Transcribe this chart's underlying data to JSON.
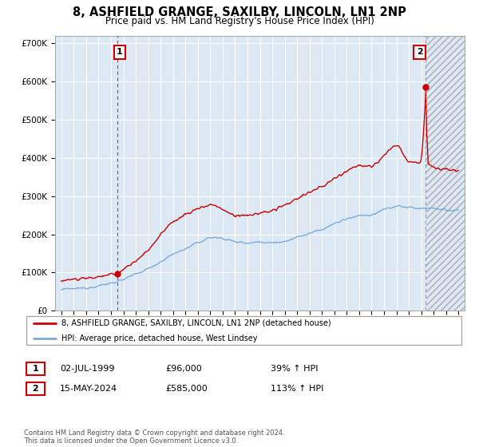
{
  "title": "8, ASHFIELD GRANGE, SAXILBY, LINCOLN, LN1 2NP",
  "subtitle": "Price paid vs. HM Land Registry's House Price Index (HPI)",
  "title_fontsize": 10.5,
  "subtitle_fontsize": 8.5,
  "xlim_start": 1994.5,
  "xlim_end": 2027.5,
  "ylim_min": 0,
  "ylim_max": 720000,
  "yticks": [
    0,
    100000,
    200000,
    300000,
    400000,
    500000,
    600000,
    700000
  ],
  "ytick_labels": [
    "£0",
    "£100K",
    "£200K",
    "£300K",
    "£400K",
    "£500K",
    "£600K",
    "£700K"
  ],
  "xticks": [
    1995,
    1996,
    1997,
    1998,
    1999,
    2000,
    2001,
    2002,
    2003,
    2004,
    2005,
    2006,
    2007,
    2008,
    2009,
    2010,
    2011,
    2012,
    2013,
    2014,
    2015,
    2016,
    2017,
    2018,
    2019,
    2020,
    2021,
    2022,
    2023,
    2024,
    2025,
    2026,
    2027
  ],
  "point1_x": 1999.5,
  "point1_y": 96000,
  "point1_label": "1",
  "point2_x": 2024.37,
  "point2_y": 585000,
  "point2_label": "2",
  "line1_color": "#cc0000",
  "line2_color": "#7aabdb",
  "chart_bg_color": "#dce9f5",
  "background_color": "#ffffff",
  "grid_color": "#ffffff",
  "hatch_start": 2024.42,
  "legend1_text": "8, ASHFIELD GRANGE, SAXILBY, LINCOLN, LN1 2NP (detached house)",
  "legend2_text": "HPI: Average price, detached house, West Lindsey",
  "table_row1": [
    "1",
    "02-JUL-1999",
    "£96,000",
    "39% ↑ HPI"
  ],
  "table_row2": [
    "2",
    "15-MAY-2024",
    "£585,000",
    "113% ↑ HPI"
  ],
  "footnote": "Contains HM Land Registry data © Crown copyright and database right 2024.\nThis data is licensed under the Open Government Licence v3.0."
}
